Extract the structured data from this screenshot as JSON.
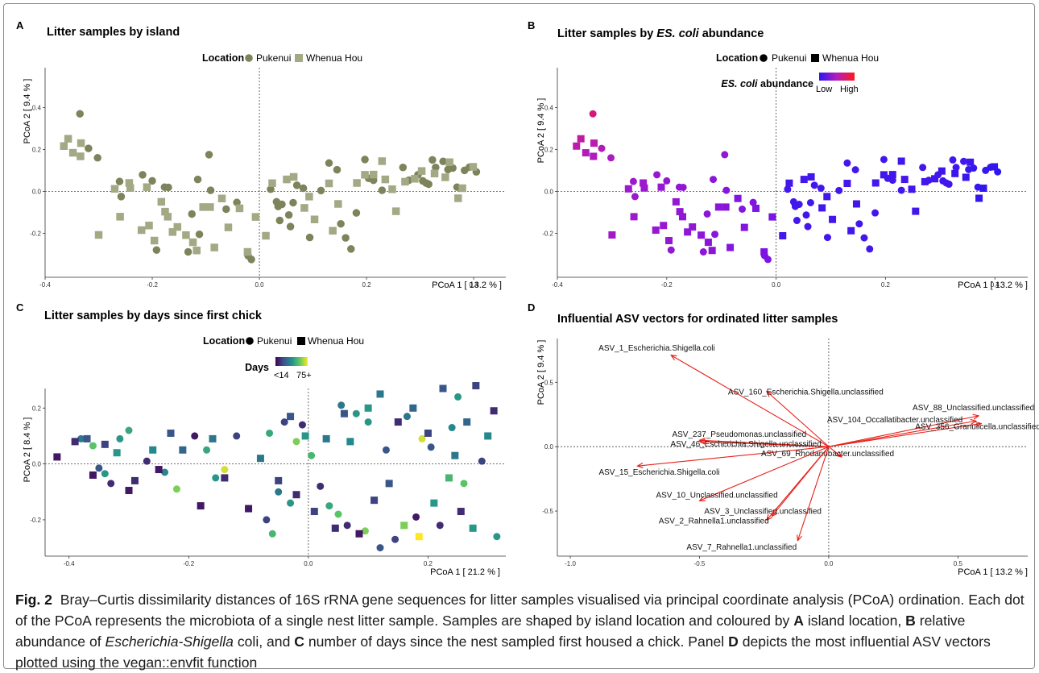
{
  "figure": {
    "colors": {
      "olive": "#7d835a",
      "sage": "#a4a985",
      "abundance_low": "#2b17f0",
      "abundance_high": "#ff1818",
      "vector": "#e8221a"
    },
    "panels": [
      {
        "letter": "A",
        "title": "Litter samples by island",
        "legend_title": "Location",
        "legend_items": [
          "Pukenui",
          "Whenua Hou"
        ],
        "xlabel": "PCoA 1 [ 13.2 % ]",
        "ylabel": "PCoA 2 [ 9.4 % ]",
        "xticks": [
          "-0.4",
          "-0.2",
          "0.0",
          "0.2",
          "0.4"
        ],
        "yticks": [
          "0.4",
          "0.2",
          "0.0",
          "-0.2"
        ]
      },
      {
        "letter": "B",
        "title_prefix": "Litter samples by ",
        "title_em": "ES. coli",
        "title_suffix": " abundance",
        "legend_title": "Location",
        "legend_items": [
          "Pukenui",
          "Whenua Hou"
        ],
        "color_title_em": "ES. coli",
        "color_title_rest": " abundance",
        "color_low": "Low",
        "color_high": "High",
        "xlabel": "PCoA 1 [ 13.2 % ]",
        "ylabel": "PCoA 2 [ 9.4 % ]",
        "xticks": [
          "-0.4",
          "-0.2",
          "0.0",
          "0.2",
          "0.4"
        ],
        "yticks": [
          "0.4",
          "0.2",
          "0.0",
          "-0.2"
        ]
      },
      {
        "letter": "C",
        "title": "Litter samples by days since first chick",
        "legend_title": "Location",
        "legend_items": [
          "Pukenui",
          "Whenua Hou"
        ],
        "color_title": "Days",
        "color_low": "<14",
        "color_high": "75+",
        "xlabel": "PCoA 1 [ 21.2 % ]",
        "ylabel": "PCoA 2 [ 8.4 % ]",
        "xticks": [
          "-0.4",
          "-0.2",
          "0.0",
          "0.2"
        ],
        "yticks": [
          "0.2",
          "0.0",
          "-0.2"
        ]
      },
      {
        "letter": "D",
        "title": "Influential ASV vectors for ordinated litter samples",
        "xlabel": "PCoA 1 [ 13.2 % ]",
        "ylabel": "PCoA 2 [ 9.4 % ]",
        "xticks": [
          "-1.0",
          "-0.5",
          "0.0",
          "0.5"
        ],
        "yticks": [
          "0.5",
          "0.0",
          "-0.5"
        ]
      }
    ]
  },
  "caption": {
    "fig_label": "Fig. 2",
    "text_1": "Bray–Curtis dissimilarity distances of 16S rRNA gene sequences for litter samples visualised via principal coordinate analysis (PCoA) ordination. Each dot of the PCoA represents the microbiota of a single nest litter sample. Samples are shaped by island location and coloured by ",
    "label_a": "A",
    "text_2": " island location, ",
    "label_b": "B",
    "text_3": " relative abundance of ",
    "genus": "Escherichia-Shigella",
    "text_4": " coli, and ",
    "label_c": "C",
    "text_5": " number of days since the nest sampled first housed a chick. Panel ",
    "label_d": "D",
    "text_6": " depicts the most influential ASV vectors plotted using the vegan::envfit function"
  },
  "chart_data": [
    {
      "type": "scatter",
      "title": "Litter samples by island",
      "xlabel": "PCoA 1 [ 13.2 % ]",
      "ylabel": "PCoA 2 [ 9.4 % ]",
      "xlim": [
        -0.4,
        0.46
      ],
      "ylim": [
        -0.41,
        0.59
      ],
      "legend": "top-center",
      "reference_lines": true,
      "grid": false,
      "series": [
        {
          "name": "Pukenui",
          "shape": "circle",
          "x": [
            -0.335,
            -0.319,
            -0.302,
            -0.261,
            -0.258,
            -0.218,
            -0.2,
            -0.192,
            -0.177,
            -0.17,
            -0.133,
            -0.126,
            -0.115,
            -0.112,
            -0.094,
            -0.091,
            -0.062,
            -0.042,
            -0.021,
            -0.015,
            0.021,
            0.032,
            0.035,
            0.038,
            0.042,
            0.055,
            0.058,
            0.063,
            0.07,
            0.082,
            0.094,
            0.115,
            0.13,
            0.145,
            0.152,
            0.161,
            0.171,
            0.181,
            0.197,
            0.204,
            0.213,
            0.229,
            0.268,
            0.279,
            0.296,
            0.305,
            0.311,
            0.316,
            0.323,
            0.329,
            0.343,
            0.352,
            0.361,
            0.369,
            0.383,
            0.392,
            0.405
          ],
          "y": [
            0.37,
            0.205,
            0.16,
            0.047,
            -0.025,
            0.079,
            0.05,
            -0.28,
            0.02,
            0.019,
            -0.289,
            -0.108,
            0.057,
            -0.205,
            0.175,
            0.005,
            -0.085,
            -0.053,
            -0.307,
            -0.325,
            0.01,
            -0.05,
            -0.072,
            -0.139,
            -0.062,
            -0.113,
            -0.168,
            -0.054,
            0.029,
            0.015,
            -0.22,
            0.004,
            0.135,
            0.103,
            -0.155,
            -0.222,
            -0.275,
            -0.103,
            0.152,
            0.062,
            0.053,
            0.005,
            0.114,
            0.053,
            0.079,
            0.05,
            0.04,
            0.034,
            0.15,
            0.114,
            0.143,
            0.104,
            0.111,
            0.02,
            0.1,
            0.115,
            0.093
          ]
        },
        {
          "name": "Whenua Hou",
          "shape": "square",
          "x": [
            -0.365,
            -0.357,
            -0.348,
            -0.333,
            -0.334,
            -0.3,
            -0.27,
            -0.26,
            -0.243,
            -0.241,
            -0.22,
            -0.21,
            -0.206,
            -0.196,
            -0.183,
            -0.176,
            -0.171,
            -0.162,
            -0.153,
            -0.137,
            -0.124,
            -0.117,
            -0.105,
            -0.092,
            -0.084,
            -0.07,
            -0.058,
            -0.037,
            -0.022,
            -0.007,
            0.012,
            0.024,
            0.051,
            0.064,
            0.084,
            0.093,
            0.103,
            0.13,
            0.137,
            0.147,
            0.182,
            0.197,
            0.213,
            0.229,
            0.235,
            0.248,
            0.255,
            0.272,
            0.29,
            0.303,
            0.327,
            0.347,
            0.355,
            0.371,
            0.379,
            0.399
          ],
          "y": [
            0.216,
            0.251,
            0.184,
            0.23,
            0.167,
            -0.208,
            0.012,
            -0.121,
            0.04,
            0.016,
            -0.185,
            0.02,
            -0.163,
            -0.235,
            -0.05,
            -0.097,
            -0.121,
            -0.194,
            -0.17,
            -0.209,
            -0.243,
            -0.282,
            -0.075,
            -0.075,
            -0.268,
            -0.034,
            -0.172,
            -0.081,
            -0.289,
            -0.122,
            -0.212,
            0.039,
            0.057,
            0.069,
            -0.079,
            -0.025,
            -0.134,
            0.038,
            -0.188,
            -0.06,
            0.04,
            0.079,
            0.08,
            0.144,
            0.057,
            0.01,
            -0.095,
            0.046,
            0.06,
            0.097,
            0.085,
            0.067,
            0.139,
            -0.033,
            0.015,
            0.117
          ]
        }
      ]
    },
    {
      "type": "scatter",
      "title": "Litter samples by ES. coli abundance",
      "xlabel": "PCoA 1 [ 13.2 % ]",
      "ylabel": "PCoA 2 [ 9.4 % ]",
      "color_by": "ES. coli abundance",
      "color_scale": [
        "#2b17f0",
        "#ff1818"
      ],
      "same_points_as_panel": "A",
      "xlim": [
        -0.4,
        0.46
      ],
      "ylim": [
        -0.41,
        0.59
      ],
      "legend": "top-center",
      "reference_lines": true,
      "grid": false
    },
    {
      "type": "scatter",
      "title": "Litter samples by days since first chick",
      "xlabel": "PCoA 1 [ 21.2 % ]",
      "ylabel": "PCoA 2 [ 8.4 % ]",
      "color_by": "Days",
      "color_scale": [
        "#440154",
        "#3b528b",
        "#21908c",
        "#5dc863",
        "#fde725"
      ],
      "color_range_labels": [
        "<14",
        "75+"
      ],
      "xlim": [
        -0.44,
        0.33
      ],
      "ylim": [
        -0.33,
        0.27
      ],
      "legend": "top-center",
      "reference_lines": true,
      "grid": false,
      "series": [
        {
          "name": "Pukenui",
          "shape": "circle",
          "x": [
            -0.38,
            -0.36,
            -0.35,
            -0.34,
            -0.33,
            -0.315,
            -0.3,
            -0.27,
            -0.24,
            -0.22,
            -0.19,
            -0.17,
            -0.155,
            -0.14,
            -0.12,
            -0.07,
            -0.06,
            -0.065,
            -0.05,
            -0.04,
            -0.03,
            -0.02,
            -0.01,
            0.005,
            0.02,
            0.035,
            0.05,
            0.055,
            0.065,
            0.08,
            0.095,
            0.1,
            0.12,
            0.13,
            0.145,
            0.165,
            0.18,
            0.19,
            0.205,
            0.22,
            0.24,
            0.25,
            0.26,
            0.29,
            0.315
          ],
          "y": [
            0.09,
            0.065,
            -0.015,
            -0.035,
            -0.07,
            0.09,
            0.12,
            0.01,
            -0.03,
            -0.09,
            0.1,
            0.05,
            -0.05,
            -0.02,
            0.1,
            -0.2,
            -0.25,
            0.11,
            -0.1,
            0.15,
            -0.14,
            0.08,
            0.14,
            0.03,
            -0.08,
            -0.15,
            -0.18,
            0.21,
            -0.22,
            0.18,
            -0.24,
            0.15,
            -0.3,
            0.05,
            -0.27,
            0.17,
            -0.19,
            0.09,
            0.06,
            -0.22,
            0.13,
            0.24,
            -0.07,
            0.01,
            -0.26
          ],
          "days": [
            30,
            55,
            20,
            40,
            10,
            40,
            45,
            10,
            35,
            60,
            5,
            45,
            40,
            70,
            15,
            15,
            50,
            45,
            30,
            15,
            40,
            60,
            10,
            50,
            10,
            45,
            55,
            30,
            10,
            40,
            60,
            40,
            20,
            20,
            15,
            30,
            5,
            70,
            20,
            10,
            35,
            40,
            55,
            15,
            40
          ]
        },
        {
          "name": "Whenua Hou",
          "shape": "square",
          "x": [
            -0.42,
            -0.39,
            -0.37,
            -0.36,
            -0.34,
            -0.32,
            -0.3,
            -0.29,
            -0.26,
            -0.25,
            -0.23,
            -0.21,
            -0.18,
            -0.16,
            -0.14,
            -0.1,
            -0.08,
            -0.05,
            -0.03,
            -0.02,
            -0.005,
            0.01,
            0.03,
            0.045,
            0.06,
            0.07,
            0.085,
            0.1,
            0.11,
            0.12,
            0.135,
            0.15,
            0.16,
            0.175,
            0.185,
            0.2,
            0.21,
            0.225,
            0.235,
            0.245,
            0.255,
            0.265,
            0.275,
            0.28,
            0.3,
            0.31
          ],
          "y": [
            0.025,
            0.08,
            0.09,
            -0.04,
            0.07,
            0.04,
            -0.095,
            -0.06,
            0.05,
            -0.02,
            0.11,
            0.05,
            -0.15,
            0.09,
            -0.05,
            -0.16,
            0.02,
            -0.06,
            0.17,
            -0.11,
            0.1,
            -0.17,
            0.09,
            -0.23,
            0.18,
            0.08,
            -0.25,
            0.2,
            -0.13,
            0.25,
            -0.07,
            0.15,
            -0.22,
            0.2,
            -0.26,
            0.11,
            -0.14,
            0.27,
            -0.05,
            0.03,
            -0.17,
            0.15,
            -0.23,
            0.28,
            0.1,
            0.19
          ],
          "days": [
            5,
            10,
            20,
            5,
            15,
            40,
            5,
            10,
            35,
            5,
            20,
            25,
            5,
            30,
            10,
            5,
            30,
            15,
            20,
            10,
            40,
            15,
            30,
            10,
            20,
            35,
            5,
            40,
            15,
            30,
            20,
            10,
            60,
            25,
            75,
            15,
            40,
            20,
            50,
            30,
            10,
            25,
            40,
            15,
            35,
            10
          ]
        }
      ]
    },
    {
      "type": "scatter",
      "subtype": "vectors",
      "title": "Influential ASV vectors for ordinated litter samples",
      "xlabel": "PCoA 1 [ 13.2 % ]",
      "ylabel": "PCoA 2 [ 9.4 % ]",
      "xlim": [
        -1.05,
        0.77
      ],
      "ylim": [
        -0.85,
        0.84
      ],
      "reference_lines": true,
      "grid": false,
      "vectors": [
        {
          "name": "ASV_1_Escherichia.Shigella.coli",
          "x": -0.61,
          "y": 0.71
        },
        {
          "name": "ASV_160_Escherichia.Shigella.unclassified",
          "x": -0.24,
          "y": 0.43
        },
        {
          "name": "ASV_88_Unclassified.unclassified",
          "x": 0.58,
          "y": 0.24
        },
        {
          "name": "ASV_104_Occallatibacter.unclassified",
          "x": 0.57,
          "y": 0.2
        },
        {
          "name": "ASV_356_Granulicella.unclassified",
          "x": 0.59,
          "y": 0.18
        },
        {
          "name": "ASV_237_Pseudomonas.unclassified",
          "x": -0.5,
          "y": 0.05
        },
        {
          "name": "ASV_46_Escherichia.Shigella.unclassified",
          "x": -0.5,
          "y": 0.04
        },
        {
          "name": "ASV_15_Escherichia.Shigella.coli",
          "x": -0.74,
          "y": -0.15
        },
        {
          "name": "ASV_69_Rhodanobacter.unclassified",
          "x": 0.05,
          "y": -0.08
        },
        {
          "name": "ASV_10_Unclassified.unclassified",
          "x": -0.5,
          "y": -0.42
        },
        {
          "name": "ASV_3_Unclassified.unclassified",
          "x": -0.22,
          "y": -0.54
        },
        {
          "name": "ASV_2_Rahnella1.unclassified",
          "x": -0.24,
          "y": -0.57
        },
        {
          "name": "ASV_7_Rahnella1.unclassified",
          "x": -0.12,
          "y": -0.73
        }
      ]
    }
  ]
}
